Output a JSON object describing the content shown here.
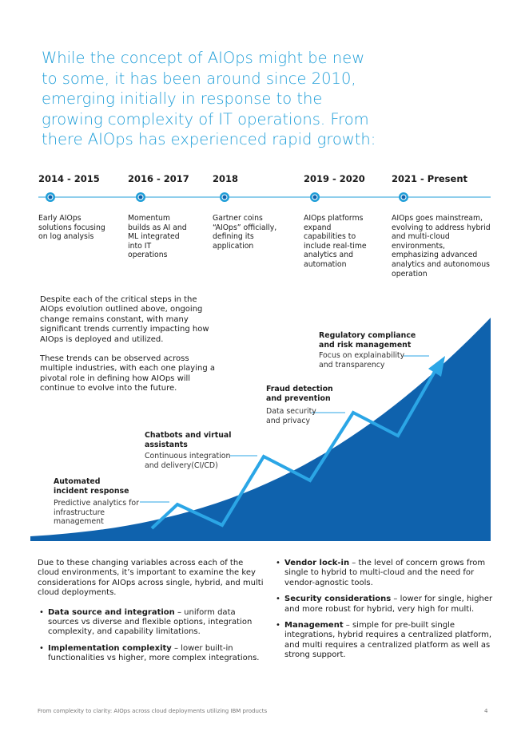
{
  "heading": {
    "lines": [
      "While the concept of AIOps might be new",
      "to some, it has been around since 2010,",
      "emerging initially in response to the",
      "growing complexity of IT operations. From",
      "there AIOps has experienced rapid growth:"
    ]
  },
  "timeline": [
    {
      "period": "2014 - 2015",
      "lines": [
        "Early AIOps",
        "solutions focusing",
        "on log analysis"
      ]
    },
    {
      "period": "2016 - 2017",
      "lines": [
        "Momentum",
        "builds as AI and",
        "ML integrated",
        "into IT",
        "operations"
      ]
    },
    {
      "period": "2018",
      "lines": [
        "Gartner coins",
        "“AIOps” officially,",
        "defining its",
        "application"
      ]
    },
    {
      "period": "2019 - 2020",
      "lines": [
        "AIOps platforms",
        "expand",
        "capabilities to",
        "include real-time",
        "analytics and",
        "automation"
      ]
    },
    {
      "period": "2021 - Present",
      "lines": [
        "AIOps goes mainstream,",
        "evolving to address hybrid",
        "and multi-cloud",
        "environments,",
        "emphasizing advanced",
        "analytics and autonomous",
        "operation"
      ]
    }
  ],
  "trends_intro": [
    [
      "Despite each of the critical steps in the",
      "AIOps evolution outlined above, ongoing",
      "change remains constant, with many",
      "significant trends currently impacting how",
      "AIOps is deployed and utilized."
    ],
    [
      "These trends can be observed across",
      "multiple industries, with each one playing a",
      "pivotal role in defining how AIOps will",
      "continue to evolve into the future."
    ]
  ],
  "trends": [
    {
      "title": [
        "Automated",
        "incident response"
      ],
      "description": [
        "Predictive analytics for",
        "infrastructure",
        "management"
      ]
    },
    {
      "title": [
        "Chatbots and virtual",
        "assistants"
      ],
      "description": [
        "Continuous integration",
        "and delivery(CI/CD)"
      ]
    },
    {
      "title": [
        "Fraud detection",
        "and prevention"
      ],
      "description": [
        "Data security",
        "and privacy"
      ]
    },
    {
      "title": [
        "Regulatory compliance",
        "and  risk management"
      ],
      "description": [
        "Focus on explainability",
        "and transparency"
      ]
    }
  ],
  "considerations": {
    "intro": "Due to these changing variables across each of the cloud environments, it’s important to examine the key considerations for AIOps across single, hybrid, and multi cloud deployments.",
    "left": [
      {
        "term": "Data source and integration",
        "text": " – uniform data sources vs diverse and flexible options, integration complexity, and capability limitations."
      },
      {
        "term": "Implementation complexity",
        "text": " – lower built-in functionalities vs higher, more complex integrations."
      }
    ],
    "right": [
      {
        "term": "Vendor lock-in",
        "text": " – the level of concern grows from single to hybrid to multi-cloud and the need for vendor-agnostic tools."
      },
      {
        "term": "Security considerations",
        "text": " – lower for single, higher and more robust for hybrid, very high for multi."
      },
      {
        "term": "Management",
        "text": " – simple for pre-built single integrations, hybrid requires a centralized platform, and multi requires a centralized platform as well as strong support."
      }
    ]
  },
  "footer": {
    "text": "From complexity to clarity: AIOps across cloud deployments utilizing IBM products",
    "page": "4"
  }
}
